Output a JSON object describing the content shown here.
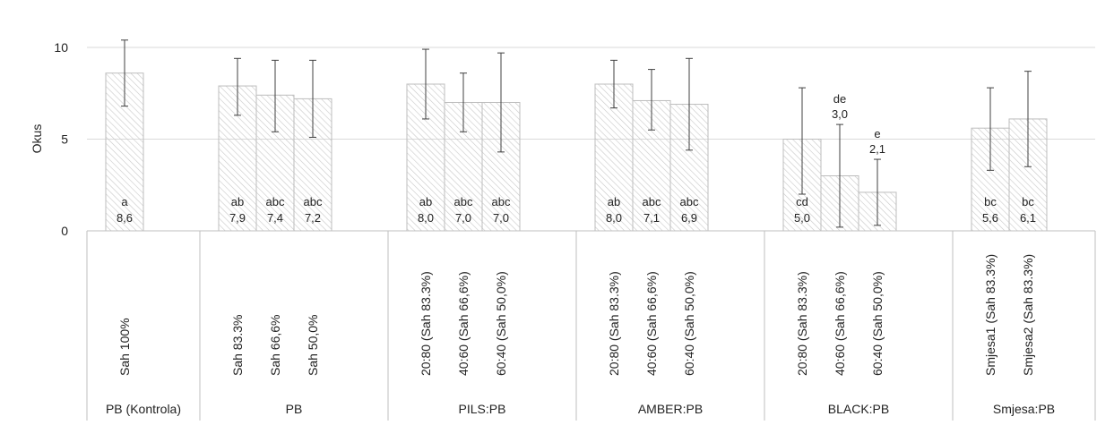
{
  "chart_data": {
    "type": "bar",
    "ylabel": "Okus",
    "ylim": [
      0,
      10
    ],
    "yticks": [
      "0",
      "5",
      "10"
    ],
    "grid": true,
    "bar_pattern": "diagonal-hatch",
    "colors": {
      "bar_hatch": "#c8c8c8",
      "bar_border": "#bdbdbd",
      "gridline": "#d9d9d9",
      "axis": "#bfbfbf",
      "error_bar": "#404040",
      "text": "#222222"
    },
    "groups": [
      {
        "name": "PB (Kontrola)",
        "bars": [
          {
            "label": "Sah 100%",
            "value": 8.6,
            "value_label": "8,6",
            "letters": "a",
            "err_low": 6.8,
            "err_high": 10.4,
            "label_pos": "inside"
          }
        ]
      },
      {
        "name": "PB",
        "bars": [
          {
            "label": "Sah 83.3%",
            "value": 7.9,
            "value_label": "7,9",
            "letters": "ab",
            "err_low": 6.3,
            "err_high": 9.4,
            "label_pos": "inside"
          },
          {
            "label": "Sah 66,6%",
            "value": 7.4,
            "value_label": "7,4",
            "letters": "abc",
            "err_low": 5.4,
            "err_high": 9.3,
            "label_pos": "inside"
          },
          {
            "label": "Sah 50,0%",
            "value": 7.2,
            "value_label": "7,2",
            "letters": "abc",
            "err_low": 5.1,
            "err_high": 9.3,
            "label_pos": "inside"
          }
        ]
      },
      {
        "name": "PILS:PB",
        "bars": [
          {
            "label": "20:80 (Sah 83.3%)",
            "value": 8.0,
            "value_label": "8,0",
            "letters": "ab",
            "err_low": 6.1,
            "err_high": 9.9,
            "label_pos": "inside"
          },
          {
            "label": "40:60 (Sah 66,6%)",
            "value": 7.0,
            "value_label": "7,0",
            "letters": "abc",
            "err_low": 5.4,
            "err_high": 8.6,
            "label_pos": "inside"
          },
          {
            "label": "60:40 (Sah 50,0%)",
            "value": 7.0,
            "value_label": "7,0",
            "letters": "abc",
            "err_low": 4.3,
            "err_high": 9.7,
            "label_pos": "inside"
          }
        ]
      },
      {
        "name": "AMBER:PB",
        "bars": [
          {
            "label": "20:80 (Sah 83.3%)",
            "value": 8.0,
            "value_label": "8,0",
            "letters": "ab",
            "err_low": 6.7,
            "err_high": 9.3,
            "label_pos": "inside"
          },
          {
            "label": "40:60 (Sah 66,6%)",
            "value": 7.1,
            "value_label": "7,1",
            "letters": "abc",
            "err_low": 5.5,
            "err_high": 8.8,
            "label_pos": "inside"
          },
          {
            "label": "60:40 (Sah 50,0%)",
            "value": 6.9,
            "value_label": "6,9",
            "letters": "abc",
            "err_low": 4.4,
            "err_high": 9.4,
            "label_pos": "inside"
          }
        ]
      },
      {
        "name": "BLACK:PB",
        "bars": [
          {
            "label": "20:80 (Sah 83.3%)",
            "value": 5.0,
            "value_label": "5,0",
            "letters": "cd",
            "err_low": 2.0,
            "err_high": 7.8,
            "label_pos": "inside"
          },
          {
            "label": "40:60 (Sah 66,6%)",
            "value": 3.0,
            "value_label": "3,0",
            "letters": "de",
            "err_low": 0.2,
            "err_high": 5.8,
            "label_pos": "above"
          },
          {
            "label": "60:40 (Sah 50,0%)",
            "value": 2.1,
            "value_label": "2,1",
            "letters": "e",
            "err_low": 0.3,
            "err_high": 3.9,
            "label_pos": "above"
          }
        ]
      },
      {
        "name": "Smjesa:PB",
        "bars": [
          {
            "label": "Smjesa1 (Sah 83.3%)",
            "value": 5.6,
            "value_label": "5,6",
            "letters": "bc",
            "err_low": 3.3,
            "err_high": 7.8,
            "label_pos": "inside"
          },
          {
            "label": "Smjesa2 (Sah 83.3%)",
            "value": 6.1,
            "value_label": "6,1",
            "letters": "bc",
            "err_low": 3.5,
            "err_high": 8.7,
            "label_pos": "inside"
          }
        ]
      }
    ]
  }
}
